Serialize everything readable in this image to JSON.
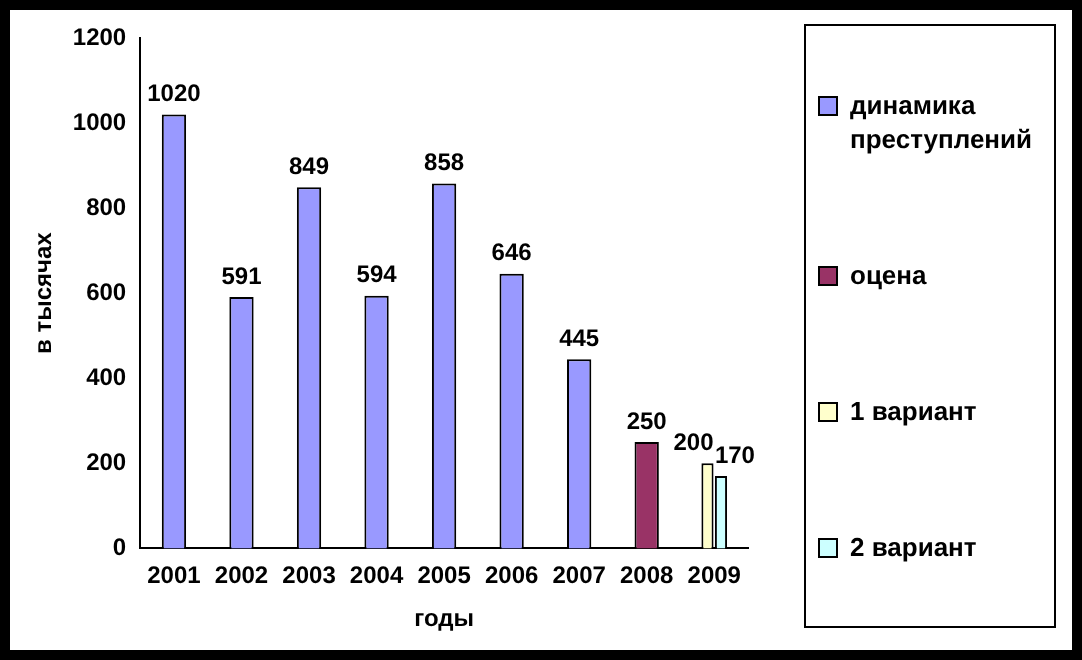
{
  "chart_data": {
    "type": "bar",
    "xlabel": "годы",
    "ylabel": "в тысячах",
    "categories": [
      "2001",
      "2002",
      "2003",
      "2004",
      "2005",
      "2006",
      "2007",
      "2008",
      "2009"
    ],
    "series": [
      {
        "name": "динамика преступлений",
        "color": "#9999ff",
        "values": [
          1020,
          591,
          849,
          594,
          858,
          646,
          445,
          null,
          null
        ]
      },
      {
        "name": "оцена",
        "color": "#993366",
        "values": [
          null,
          null,
          null,
          null,
          null,
          null,
          null,
          250,
          null
        ]
      },
      {
        "name": "1 вариант",
        "color": "#ffffcc",
        "values": [
          null,
          null,
          null,
          null,
          null,
          null,
          null,
          null,
          200
        ]
      },
      {
        "name": "2 вариант",
        "color": "#ccffff",
        "values": [
          null,
          null,
          null,
          null,
          null,
          null,
          null,
          null,
          170
        ]
      }
    ],
    "ylim": [
      0,
      1200
    ],
    "yticks": [
      0,
      200,
      400,
      600,
      800,
      1000,
      1200
    ],
    "grid": false,
    "legend": "right",
    "data_labels": true
  }
}
